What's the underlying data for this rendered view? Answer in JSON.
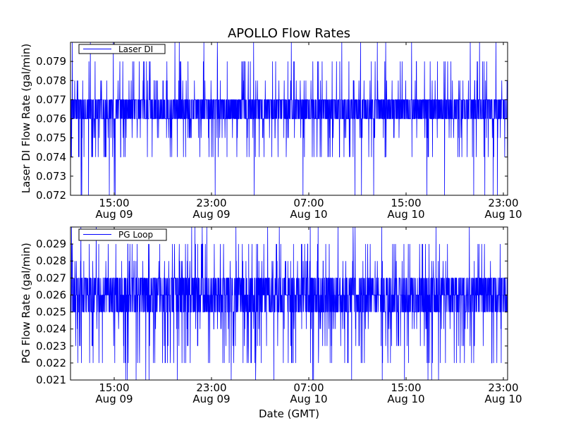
{
  "chart_data": {
    "title": "APOLLO Flow Rates",
    "type": "line",
    "x_label": "Date (GMT)",
    "x_tick_labels": [
      {
        "time": "15:00",
        "date": "Aug 09"
      },
      {
        "time": "23:00",
        "date": "Aug 09"
      },
      {
        "time": "07:00",
        "date": "Aug 10"
      },
      {
        "time": "15:00",
        "date": "Aug 10"
      },
      {
        "time": "23:00",
        "date": "Aug 10"
      }
    ],
    "x_range": [
      "Aug 09 10:30",
      "Aug 10 23:30"
    ],
    "panels": [
      {
        "ylabel": "Laser DI Flow Rate (gal/min)",
        "legend": "Laser DI",
        "legend_position": "top-left",
        "ylim": [
          0.072,
          0.08
        ],
        "yticks": [
          "0.072",
          "0.073",
          "0.074",
          "0.075",
          "0.076",
          "0.077",
          "0.078",
          "0.079"
        ],
        "typical_band": [
          0.076,
          0.077
        ],
        "occasional_range": [
          0.074,
          0.079
        ],
        "rare_extremes": [
          0.072,
          0.08
        ],
        "color": "#0000ff"
      },
      {
        "ylabel": "PG Flow Rate (gal/min)",
        "legend": "PG Loop",
        "legend_position": "top-left",
        "ylim": [
          0.021,
          0.03
        ],
        "yticks": [
          "0.021",
          "0.022",
          "0.023",
          "0.024",
          "0.025",
          "0.026",
          "0.027",
          "0.028",
          "0.029"
        ],
        "typical_band": [
          0.025,
          0.027
        ],
        "occasional_range": [
          0.022,
          0.029
        ],
        "rare_extremes": [
          0.021,
          0.03
        ],
        "color": "#0000ff"
      }
    ]
  }
}
